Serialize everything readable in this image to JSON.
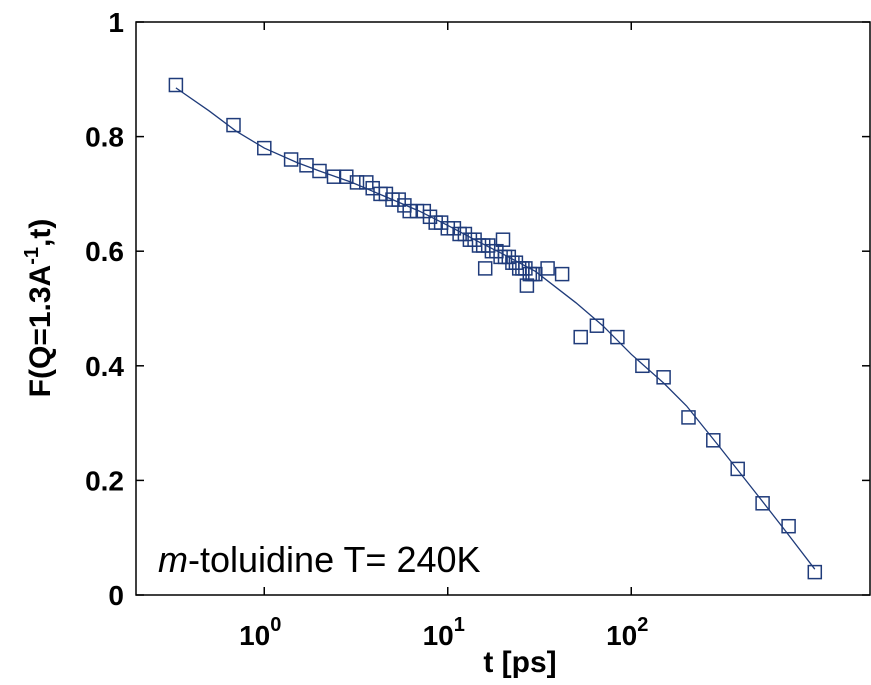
{
  "chart_data": {
    "type": "scatter",
    "xscale": "log",
    "xlim": [
      0.2,
      2000
    ],
    "ylim": [
      0,
      1
    ],
    "xlabel": "t [ps]",
    "ylabel_main": "F(Q=1.3A",
    "ylabel_sup": "-1",
    "ylabel_end": ",t)",
    "annotation_italic": "m",
    "annotation_rest": "-toluidine T= 240K",
    "grid": false,
    "colors": {
      "marker": "#1f3b7a",
      "line": "#1f3b7a",
      "axis": "#000000"
    },
    "x_ticks": [
      {
        "value": 1,
        "base": "10",
        "exp": "0"
      },
      {
        "value": 10,
        "base": "10",
        "exp": "1"
      },
      {
        "value": 100,
        "base": "10",
        "exp": "2"
      }
    ],
    "y_ticks": [
      {
        "value": 0,
        "label": "0"
      },
      {
        "value": 0.2,
        "label": "0.2"
      },
      {
        "value": 0.4,
        "label": "0.4"
      },
      {
        "value": 0.6,
        "label": "0.6"
      },
      {
        "value": 0.8,
        "label": "0.8"
      },
      {
        "value": 1,
        "label": "1"
      }
    ],
    "series": [
      {
        "kind": "markers",
        "marker": "square",
        "x": [
          0.33,
          0.68,
          1.0,
          1.4,
          1.7,
          2.0,
          2.4,
          2.8,
          3.2,
          3.6,
          3.9,
          4.3,
          4.6,
          5.0,
          5.4,
          5.8,
          6.2,
          6.8,
          7.4,
          8.0,
          8.6,
          9.2,
          10.0,
          10.8,
          11.6,
          12.4,
          13.2,
          14.0,
          14.8,
          15.6,
          16.0,
          16.6,
          17.4,
          18.4,
          19.4,
          20.0,
          20.5,
          21.5,
          22.5,
          23.5,
          24.5,
          25.5,
          26.5,
          27.0,
          28.0,
          29.0,
          30.0,
          35.0,
          42.0,
          53.0,
          65.0,
          84.0,
          115.0,
          150.0,
          205.0,
          280.0,
          380.0,
          520.0,
          720.0,
          1000.0
        ],
        "y": [
          0.89,
          0.82,
          0.78,
          0.76,
          0.75,
          0.74,
          0.73,
          0.73,
          0.72,
          0.72,
          0.71,
          0.7,
          0.7,
          0.69,
          0.69,
          0.68,
          0.67,
          0.67,
          0.67,
          0.66,
          0.65,
          0.65,
          0.64,
          0.64,
          0.63,
          0.63,
          0.62,
          0.62,
          0.61,
          0.61,
          0.57,
          0.61,
          0.6,
          0.6,
          0.59,
          0.62,
          0.59,
          0.59,
          0.58,
          0.58,
          0.57,
          0.57,
          0.57,
          0.54,
          0.56,
          0.56,
          0.56,
          0.57,
          0.56,
          0.45,
          0.47,
          0.45,
          0.4,
          0.38,
          0.31,
          0.27,
          0.22,
          0.16,
          0.12,
          0.04
        ]
      },
      {
        "kind": "fit-line",
        "x": [
          0.33,
          0.5,
          0.7,
          1.0,
          1.5,
          2.0,
          3.0,
          5.0,
          7.0,
          10.0,
          15.0,
          20.0,
          30.0,
          50.0,
          70.0,
          100.0,
          150.0,
          200.0,
          300.0,
          500.0,
          700.0,
          1000.0
        ],
        "y": [
          0.885,
          0.845,
          0.81,
          0.78,
          0.755,
          0.74,
          0.72,
          0.69,
          0.67,
          0.645,
          0.615,
          0.595,
          0.565,
          0.51,
          0.47,
          0.42,
          0.37,
          0.33,
          0.26,
          0.17,
          0.11,
          0.045
        ]
      }
    ]
  }
}
